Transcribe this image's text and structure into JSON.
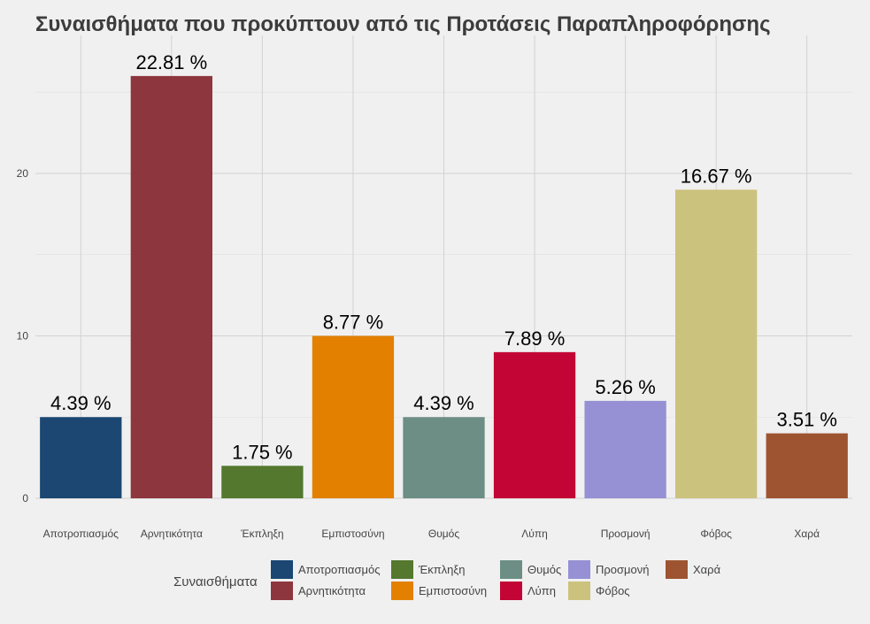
{
  "chart_data": {
    "type": "bar",
    "title": "Συναισθήματα που προκύπτουν από τις Προτάσεις Παραπληροφόρησης",
    "xlabel": "",
    "ylabel": "",
    "categories": [
      "Αποτροπιασμός",
      "Αρνητικότητα",
      "Έκπληξη",
      "Εμπιστοσύνη",
      "Θυμός",
      "Λύπη",
      "Προσμονή",
      "Φόβος",
      "Χαρά"
    ],
    "values": [
      5,
      26,
      2,
      10,
      5,
      9,
      6,
      19,
      4
    ],
    "data_labels": [
      "4.39 %",
      "22.81 %",
      "1.75 %",
      "8.77 %",
      "4.39 %",
      "7.89 %",
      "5.26 %",
      "16.67 %",
      "3.51 %"
    ],
    "colors": [
      "#1b4772",
      "#8e363d",
      "#54782e",
      "#e38000",
      "#6c8e84",
      "#c20534",
      "#9690d4",
      "#cbc27e",
      "#9e5431"
    ],
    "ylim": [
      0,
      28.5
    ],
    "yticks": [
      0,
      10,
      20
    ],
    "grid": true,
    "legend": {
      "title": "Συναισθήματα",
      "position": "bottom",
      "items": [
        "Αποτροπιασμός",
        "Αρνητικότητα",
        "Έκπληξη",
        "Εμπιστοσύνη",
        "Θυμός",
        "Λύπη",
        "Προσμονή",
        "Φόβος",
        "Χαρά"
      ]
    }
  }
}
